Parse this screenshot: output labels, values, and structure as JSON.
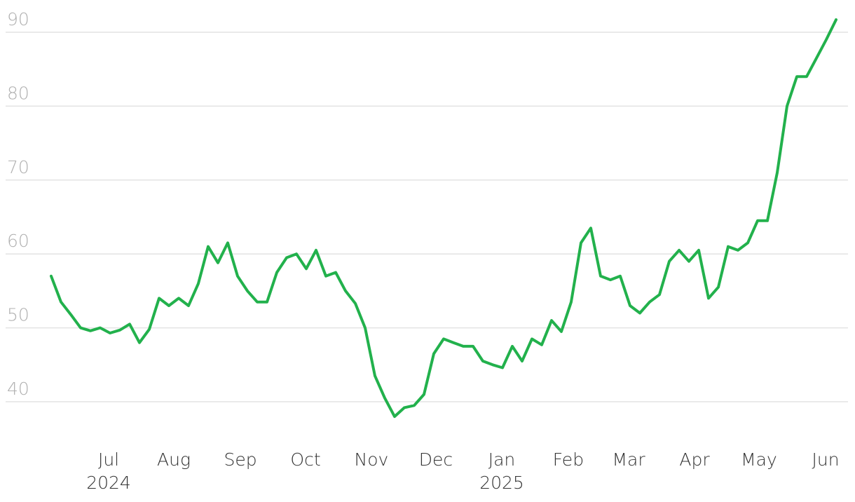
{
  "chart_data": {
    "type": "line",
    "color": "#22b14c",
    "grid": true,
    "values": [
      57,
      53.5,
      51.8,
      50,
      49.6,
      50,
      49.3,
      49.7,
      50.5,
      48,
      49.8,
      54,
      53,
      54,
      53,
      56,
      61,
      58.8,
      61.5,
      57,
      55,
      53.5,
      53.5,
      57.5,
      59.5,
      60,
      58,
      60.5,
      57,
      57.5,
      55,
      53.3,
      50,
      43.5,
      40.5,
      38,
      39.2,
      39.5,
      41,
      46.5,
      48.5,
      48,
      47.5,
      47.5,
      45.5,
      45,
      44.6,
      47.5,
      45.5,
      48.5,
      47.7,
      51,
      49.5,
      53.5,
      61.5,
      63.5,
      57,
      56.5,
      57,
      53,
      52,
      53.5,
      54.5,
      59,
      60.5,
      59,
      60.5,
      54,
      55.5,
      61,
      60.5,
      61.5,
      64.5,
      64.5,
      71,
      80,
      84,
      84,
      86.5,
      89,
      91.7
    ],
    "xlim": [
      0,
      80
    ],
    "xticks": [
      {
        "value": 5.86,
        "label": "Jul"
      },
      {
        "value": 12.5,
        "label": "Aug"
      },
      {
        "value": 19.29,
        "label": "Sep"
      },
      {
        "value": 25.93,
        "label": "Oct"
      },
      {
        "value": 32.64,
        "label": "Nov"
      },
      {
        "value": 39.21,
        "label": "Dec"
      },
      {
        "value": 45.93,
        "label": "Jan"
      },
      {
        "value": 52.71,
        "label": "Feb"
      },
      {
        "value": 58.86,
        "label": "Mar"
      },
      {
        "value": 65.57,
        "label": "Apr"
      },
      {
        "value": 72.14,
        "label": "May"
      },
      {
        "value": 78.93,
        "label": "Jun"
      }
    ],
    "year_labels": [
      {
        "value": 5.86,
        "label": "2024"
      },
      {
        "value": 45.93,
        "label": "2025"
      }
    ],
    "ylim": [
      40,
      90
    ],
    "yticks": [
      40,
      50,
      60,
      70,
      80,
      90
    ]
  }
}
